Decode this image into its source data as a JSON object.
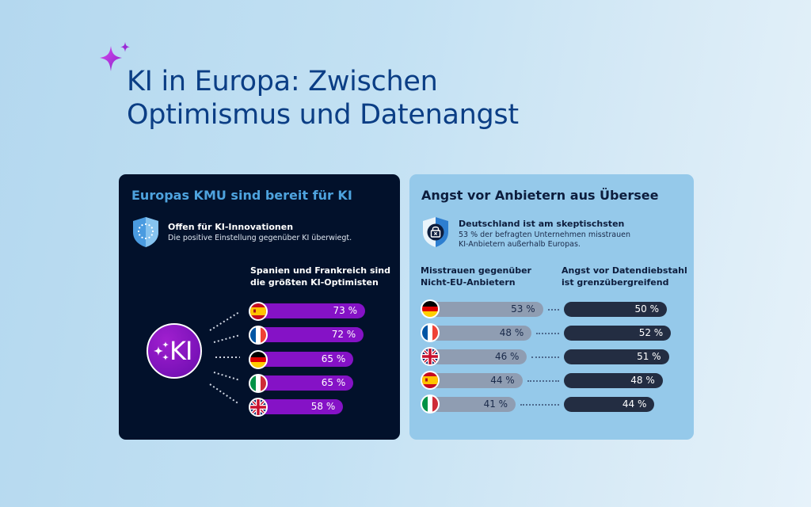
{
  "header": {
    "title_line1": "KI in Europa: Zwischen",
    "title_line2": "Optimismus und Datenangst",
    "icon": "sparkle-icon",
    "accent_color": "#c43ce6"
  },
  "left_panel": {
    "title": "Europas KMU sind bereit für KI",
    "info": {
      "icon": "eu-shield-icon",
      "heading": "Offen für KI-Innovationen",
      "text": "Die positive Einstellung gegenüber KI überwiegt."
    },
    "subheading_line1": "Spanien und Frankreich sind",
    "subheading_line2": "die größten KI-Optimisten",
    "badge": {
      "label": "KI",
      "icon": "ai-sparkle-icon"
    },
    "bar_color": "#8512c6",
    "items": [
      {
        "country": "Spanien",
        "flag": "flag-es",
        "value": 73,
        "label": "73 %"
      },
      {
        "country": "Frankreich",
        "flag": "flag-fr",
        "value": 72,
        "label": "72 %"
      },
      {
        "country": "Deutschland",
        "flag": "flag-de",
        "value": 65,
        "label": "65 %"
      },
      {
        "country": "Italien",
        "flag": "flag-it",
        "value": 65,
        "label": "65 %"
      },
      {
        "country": "Vereinigtes Königreich",
        "flag": "flag-gb",
        "value": 58,
        "label": "58 %"
      }
    ]
  },
  "right_panel": {
    "title": "Angst vor Anbietern aus Übersee",
    "info": {
      "icon": "lock-shield-icon",
      "heading": "Deutschland ist am skeptischsten",
      "text_line1": "53 % der befragten Unternehmen misstrauen",
      "text_line2": "KI-Anbietern außerhalb Europas."
    },
    "col1_heading_line1": "Misstrauen gegenüber",
    "col1_heading_line2": "Nicht-EU-Anbietern",
    "col2_heading_line1": "Angst vor Datendiebstahl",
    "col2_heading_line2": "ist grenzübergreifend",
    "col1_color": "#8f9db2",
    "col2_color": "#232d42",
    "items": [
      {
        "country": "Deutschland",
        "flag": "flag-de",
        "distrust": 53,
        "distrust_label": "53 %",
        "theft": 50,
        "theft_label": "50 %"
      },
      {
        "country": "Frankreich",
        "flag": "flag-fr",
        "distrust": 48,
        "distrust_label": "48 %",
        "theft": 52,
        "theft_label": "52 %"
      },
      {
        "country": "Vereinigtes Königreich",
        "flag": "flag-gb",
        "distrust": 46,
        "distrust_label": "46 %",
        "theft": 51,
        "theft_label": "51 %"
      },
      {
        "country": "Spanien",
        "flag": "flag-es",
        "distrust": 44,
        "distrust_label": "44 %",
        "theft": 48,
        "theft_label": "48 %"
      },
      {
        "country": "Italien",
        "flag": "flag-it",
        "distrust": 41,
        "distrust_label": "41 %",
        "theft": 44,
        "theft_label": "44 %"
      }
    ]
  }
}
